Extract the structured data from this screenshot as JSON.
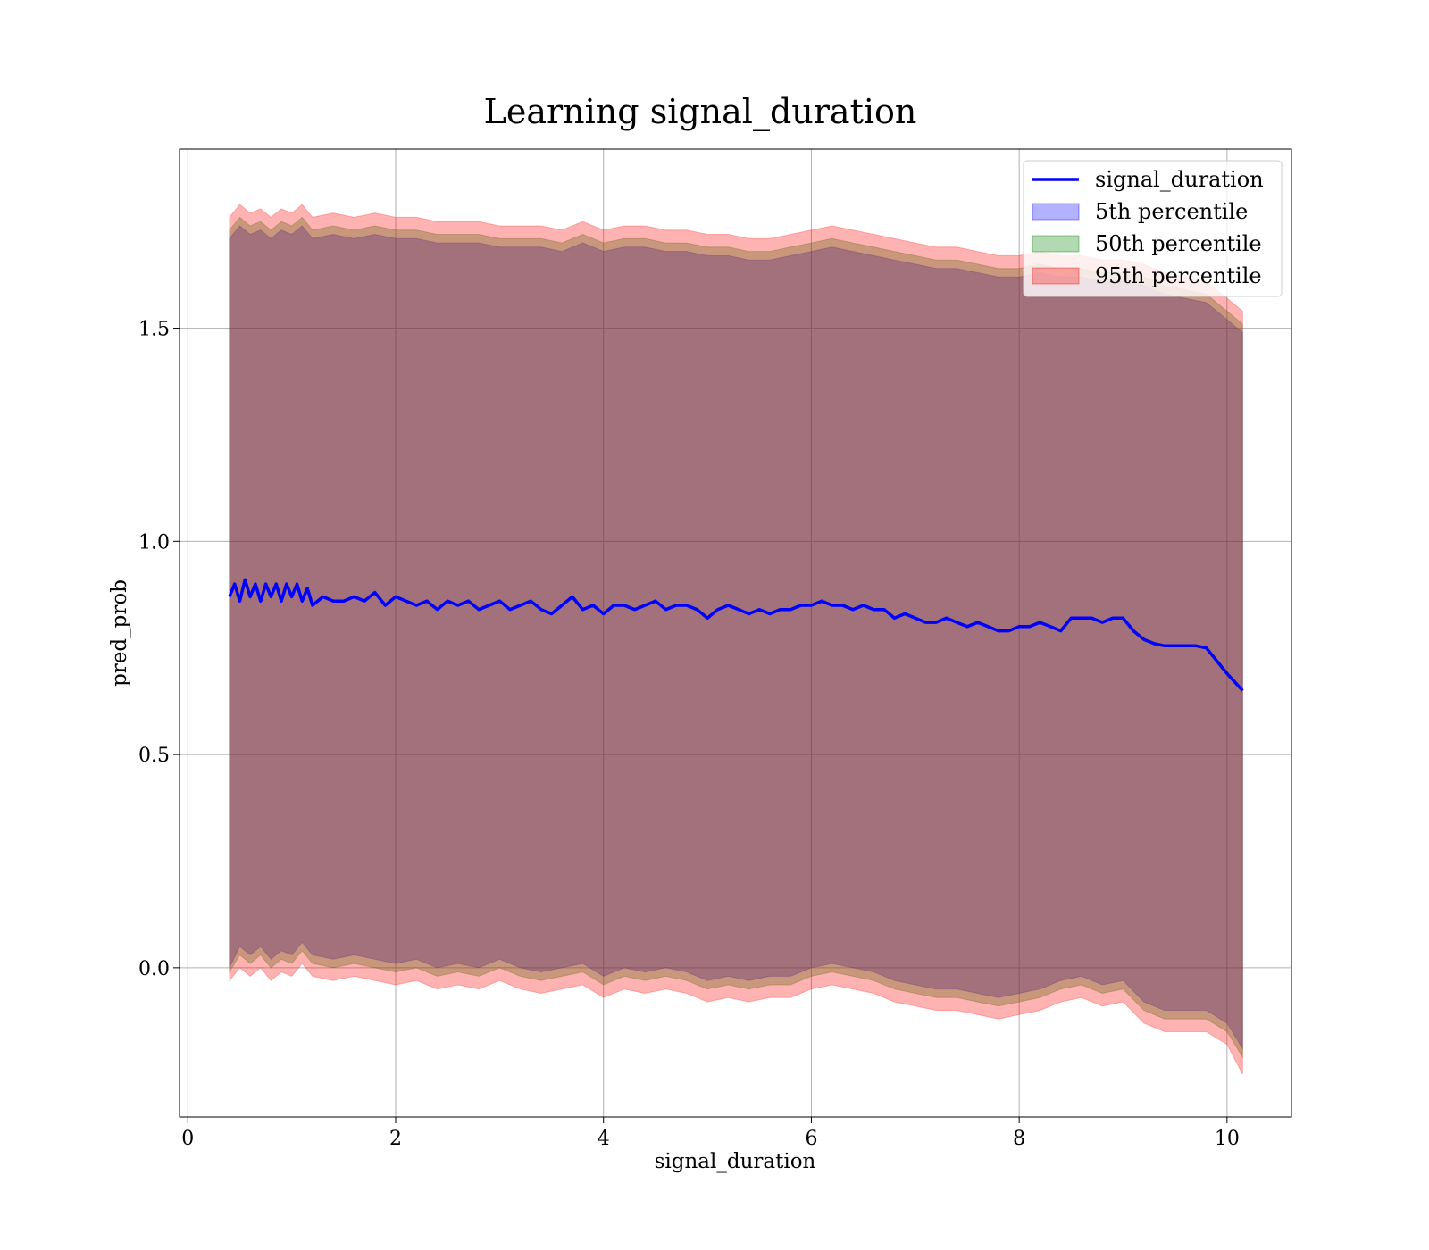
{
  "chart_data": {
    "type": "line",
    "title": "Learning signal_duration",
    "xlabel": "signal_duration",
    "ylabel": "pred_prob",
    "xlim": [
      -0.08,
      10.62
    ],
    "ylim": [
      -0.35,
      1.92
    ],
    "xticks": [
      0,
      2,
      4,
      6,
      8,
      10
    ],
    "yticks": [
      0.0,
      0.5,
      1.0,
      1.5
    ],
    "xtick_labels": [
      "0",
      "2",
      "4",
      "6",
      "8",
      "10"
    ],
    "ytick_labels": [
      "0.0",
      "0.5",
      "1.0",
      "1.5"
    ],
    "grid": true,
    "legend_position": "top-right",
    "line_series": {
      "name": "signal_duration",
      "color": "#0000ff",
      "x": [
        0.4,
        0.45,
        0.5,
        0.55,
        0.6,
        0.65,
        0.7,
        0.75,
        0.8,
        0.85,
        0.9,
        0.95,
        1.0,
        1.05,
        1.1,
        1.15,
        1.2,
        1.3,
        1.4,
        1.5,
        1.6,
        1.7,
        1.8,
        1.9,
        2.0,
        2.1,
        2.2,
        2.3,
        2.4,
        2.5,
        2.6,
        2.7,
        2.8,
        2.9,
        3.0,
        3.1,
        3.2,
        3.3,
        3.4,
        3.5,
        3.6,
        3.7,
        3.8,
        3.9,
        4.0,
        4.1,
        4.2,
        4.3,
        4.4,
        4.5,
        4.6,
        4.7,
        4.8,
        4.9,
        5.0,
        5.1,
        5.2,
        5.3,
        5.4,
        5.5,
        5.6,
        5.7,
        5.8,
        5.9,
        6.0,
        6.1,
        6.2,
        6.3,
        6.4,
        6.5,
        6.6,
        6.7,
        6.8,
        6.9,
        7.0,
        7.1,
        7.2,
        7.3,
        7.4,
        7.5,
        7.6,
        7.7,
        7.8,
        7.9,
        8.0,
        8.1,
        8.2,
        8.3,
        8.4,
        8.5,
        8.6,
        8.7,
        8.8,
        8.9,
        9.0,
        9.1,
        9.2,
        9.3,
        9.4,
        9.5,
        9.6,
        9.7,
        9.8,
        9.9,
        10.0,
        10.15
      ],
      "y": [
        0.87,
        0.9,
        0.86,
        0.91,
        0.87,
        0.9,
        0.86,
        0.9,
        0.87,
        0.9,
        0.86,
        0.9,
        0.87,
        0.9,
        0.86,
        0.89,
        0.85,
        0.87,
        0.86,
        0.86,
        0.87,
        0.86,
        0.88,
        0.85,
        0.87,
        0.86,
        0.85,
        0.86,
        0.84,
        0.86,
        0.85,
        0.86,
        0.84,
        0.85,
        0.86,
        0.84,
        0.85,
        0.86,
        0.84,
        0.83,
        0.85,
        0.87,
        0.84,
        0.85,
        0.83,
        0.85,
        0.85,
        0.84,
        0.85,
        0.86,
        0.84,
        0.85,
        0.85,
        0.84,
        0.82,
        0.84,
        0.85,
        0.84,
        0.83,
        0.84,
        0.83,
        0.84,
        0.84,
        0.85,
        0.85,
        0.86,
        0.85,
        0.85,
        0.84,
        0.85,
        0.84,
        0.84,
        0.82,
        0.83,
        0.82,
        0.81,
        0.81,
        0.82,
        0.81,
        0.8,
        0.81,
        0.8,
        0.79,
        0.79,
        0.8,
        0.8,
        0.81,
        0.8,
        0.79,
        0.82,
        0.82,
        0.82,
        0.81,
        0.82,
        0.82,
        0.79,
        0.77,
        0.76,
        0.755,
        0.755,
        0.755,
        0.755,
        0.75,
        0.72,
        0.69,
        0.65
      ]
    },
    "bands": {
      "x": [
        0.4,
        0.5,
        0.6,
        0.7,
        0.8,
        0.9,
        1.0,
        1.1,
        1.2,
        1.4,
        1.6,
        1.8,
        2.0,
        2.2,
        2.4,
        2.6,
        2.8,
        3.0,
        3.2,
        3.4,
        3.6,
        3.8,
        4.0,
        4.2,
        4.4,
        4.6,
        4.8,
        5.0,
        5.2,
        5.4,
        5.6,
        5.8,
        6.0,
        6.2,
        6.4,
        6.6,
        6.8,
        7.0,
        7.2,
        7.4,
        7.6,
        7.8,
        8.0,
        8.2,
        8.4,
        8.6,
        8.8,
        9.0,
        9.2,
        9.4,
        9.6,
        9.8,
        10.0,
        10.15
      ],
      "series": [
        {
          "name": "5th percentile",
          "color": "#0000ff",
          "lower": [
            0.0,
            0.05,
            0.03,
            0.05,
            0.02,
            0.04,
            0.03,
            0.06,
            0.03,
            0.02,
            0.03,
            0.02,
            0.01,
            0.02,
            0.0,
            0.01,
            0.0,
            0.02,
            0.0,
            -0.01,
            0.0,
            0.01,
            -0.02,
            0.0,
            -0.01,
            0.0,
            -0.01,
            -0.03,
            -0.02,
            -0.03,
            -0.02,
            -0.02,
            0.0,
            0.01,
            0.0,
            -0.01,
            -0.03,
            -0.04,
            -0.05,
            -0.05,
            -0.06,
            -0.07,
            -0.06,
            -0.05,
            -0.03,
            -0.02,
            -0.04,
            -0.03,
            -0.08,
            -0.1,
            -0.1,
            -0.1,
            -0.13,
            -0.19
          ],
          "upper": [
            1.71,
            1.74,
            1.72,
            1.73,
            1.71,
            1.73,
            1.72,
            1.74,
            1.71,
            1.72,
            1.71,
            1.72,
            1.71,
            1.71,
            1.7,
            1.7,
            1.7,
            1.69,
            1.69,
            1.69,
            1.68,
            1.7,
            1.68,
            1.69,
            1.69,
            1.68,
            1.68,
            1.67,
            1.67,
            1.66,
            1.66,
            1.67,
            1.68,
            1.69,
            1.68,
            1.67,
            1.66,
            1.65,
            1.64,
            1.64,
            1.63,
            1.62,
            1.62,
            1.63,
            1.62,
            1.62,
            1.61,
            1.61,
            1.6,
            1.58,
            1.57,
            1.56,
            1.52,
            1.49
          ]
        },
        {
          "name": "50th percentile",
          "color": "#008000",
          "lower": [
            -0.01,
            0.03,
            0.01,
            0.03,
            0.0,
            0.02,
            0.01,
            0.04,
            0.01,
            0.0,
            0.01,
            0.0,
            -0.01,
            0.0,
            -0.02,
            -0.01,
            -0.02,
            0.0,
            -0.02,
            -0.03,
            -0.02,
            -0.01,
            -0.04,
            -0.02,
            -0.03,
            -0.02,
            -0.03,
            -0.05,
            -0.04,
            -0.05,
            -0.04,
            -0.04,
            -0.02,
            -0.01,
            -0.02,
            -0.03,
            -0.05,
            -0.06,
            -0.07,
            -0.07,
            -0.08,
            -0.09,
            -0.08,
            -0.07,
            -0.05,
            -0.04,
            -0.06,
            -0.05,
            -0.1,
            -0.12,
            -0.12,
            -0.12,
            -0.15,
            -0.21
          ],
          "upper": [
            1.73,
            1.76,
            1.74,
            1.75,
            1.73,
            1.75,
            1.74,
            1.76,
            1.73,
            1.74,
            1.73,
            1.74,
            1.73,
            1.73,
            1.72,
            1.72,
            1.72,
            1.71,
            1.71,
            1.71,
            1.7,
            1.72,
            1.7,
            1.71,
            1.71,
            1.7,
            1.7,
            1.69,
            1.69,
            1.68,
            1.68,
            1.69,
            1.7,
            1.71,
            1.7,
            1.69,
            1.68,
            1.67,
            1.66,
            1.66,
            1.65,
            1.64,
            1.64,
            1.65,
            1.64,
            1.64,
            1.63,
            1.63,
            1.62,
            1.6,
            1.59,
            1.58,
            1.54,
            1.51
          ]
        },
        {
          "name": "95th percentile",
          "color": "#ff0000",
          "lower": [
            -0.03,
            0.0,
            -0.02,
            0.0,
            -0.03,
            -0.01,
            -0.02,
            0.01,
            -0.02,
            -0.03,
            -0.02,
            -0.03,
            -0.04,
            -0.03,
            -0.05,
            -0.04,
            -0.05,
            -0.03,
            -0.05,
            -0.06,
            -0.05,
            -0.04,
            -0.07,
            -0.05,
            -0.06,
            -0.05,
            -0.06,
            -0.08,
            -0.07,
            -0.08,
            -0.07,
            -0.07,
            -0.05,
            -0.04,
            -0.05,
            -0.06,
            -0.08,
            -0.09,
            -0.1,
            -0.1,
            -0.11,
            -0.12,
            -0.11,
            -0.1,
            -0.08,
            -0.07,
            -0.09,
            -0.08,
            -0.13,
            -0.15,
            -0.15,
            -0.15,
            -0.18,
            -0.25
          ],
          "upper": [
            1.76,
            1.79,
            1.77,
            1.78,
            1.76,
            1.78,
            1.77,
            1.79,
            1.76,
            1.77,
            1.76,
            1.77,
            1.76,
            1.76,
            1.75,
            1.75,
            1.75,
            1.74,
            1.74,
            1.74,
            1.73,
            1.75,
            1.73,
            1.74,
            1.74,
            1.73,
            1.73,
            1.72,
            1.72,
            1.71,
            1.71,
            1.72,
            1.73,
            1.74,
            1.73,
            1.72,
            1.71,
            1.7,
            1.69,
            1.69,
            1.68,
            1.67,
            1.67,
            1.68,
            1.67,
            1.67,
            1.66,
            1.66,
            1.65,
            1.63,
            1.62,
            1.61,
            1.57,
            1.54
          ]
        }
      ]
    }
  }
}
